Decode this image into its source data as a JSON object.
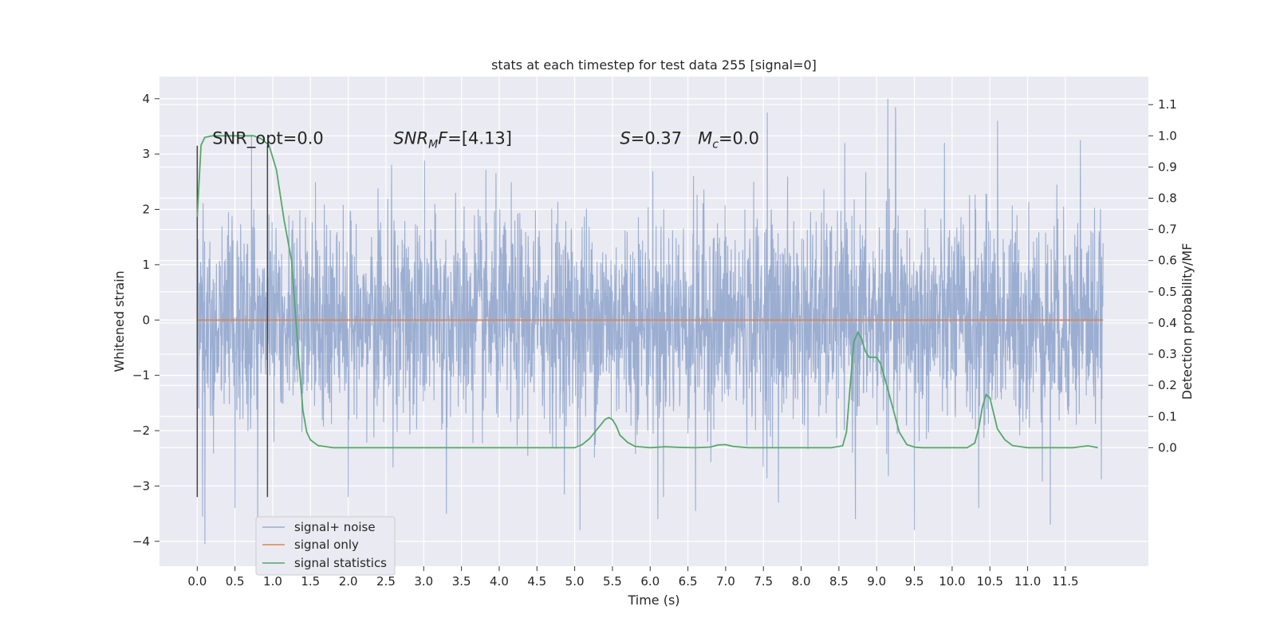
{
  "chart_data": {
    "type": "line",
    "title": "stats at each timestep for test data 255 [signal=0]",
    "xlabel": "Time (s)",
    "ylabel_left": "Whitened strain",
    "ylabel_right": "Detection probability/MF",
    "xlim": [
      -0.5,
      12.6
    ],
    "ylim_left": [
      -4.45,
      4.4
    ],
    "ylim_right": [
      -0.38,
      1.19
    ],
    "x_ticks": [
      0.0,
      0.5,
      1.0,
      1.5,
      2.0,
      2.5,
      3.0,
      3.5,
      4.0,
      4.5,
      5.0,
      5.5,
      6.0,
      6.5,
      7.0,
      7.5,
      8.0,
      8.5,
      9.0,
      9.5,
      10.0,
      10.5,
      11.0,
      11.5
    ],
    "x_tick_labels": [
      "0.0",
      "0.5",
      "1.0",
      "1.5",
      "2.0",
      "2.5",
      "3.0",
      "3.5",
      "4.0",
      "4.5",
      "5.0",
      "5.5",
      "6.0",
      "6.5",
      "7.0",
      "7.5",
      "8.0",
      "8.5",
      "9.0",
      "9.5",
      "10.0",
      "10.5",
      "11.0",
      "11.5"
    ],
    "y_left_ticks": [
      -4,
      -3,
      -2,
      -1,
      0,
      1,
      2,
      3,
      4
    ],
    "y_left_tick_labels": [
      "−4",
      "−3",
      "−2",
      "−1",
      "0",
      "1",
      "2",
      "3",
      "4"
    ],
    "y_right_ticks": [
      0.0,
      0.1,
      0.2,
      0.3,
      0.4,
      0.5,
      0.6,
      0.7,
      0.8,
      0.9,
      1.0,
      1.1
    ],
    "y_right_tick_labels": [
      "0.0",
      "0.1",
      "0.2",
      "0.3",
      "0.4",
      "0.5",
      "0.6",
      "0.7",
      "0.8",
      "0.9",
      "1.0",
      "1.1"
    ],
    "grid": true,
    "legend_position": "lower-left",
    "annotations": [
      {
        "text": "SNR_opt=0.0",
        "x": 0.2,
        "y": 3.18
      },
      {
        "text": "SNR_MF=[4.13]",
        "x": 2.6,
        "y": 3.18,
        "math": "snrmf"
      },
      {
        "text": "S=0.37   M_c=0.0",
        "x": 5.6,
        "y": 3.18,
        "math": "smc"
      }
    ],
    "vlines": [
      {
        "x": 0.0,
        "ymin": -3.2,
        "ymax": 3.15
      },
      {
        "x": 0.93,
        "ymin": -3.2,
        "ymax": 3.15
      }
    ],
    "series": [
      {
        "name": "signal+ noise",
        "axis": "left",
        "color": "#4c72b0",
        "opacity": 0.5,
        "kind": "noise",
        "x_range": [
          0.0,
          12.0
        ],
        "sample_rate": 256,
        "std": 0.95,
        "peaks": [
          {
            "x": 0.07,
            "y": -3.55
          },
          {
            "x": 0.1,
            "y": -4.05
          },
          {
            "x": 0.72,
            "y": 3.35
          },
          {
            "x": 0.5,
            "y": -3.4
          },
          {
            "x": 0.8,
            "y": -3.7
          },
          {
            "x": 2.0,
            "y": -3.2
          },
          {
            "x": 3.3,
            "y": -3.5
          },
          {
            "x": 5.07,
            "y": -3.8
          },
          {
            "x": 6.1,
            "y": -3.6
          },
          {
            "x": 6.6,
            "y": -3.45
          },
          {
            "x": 7.55,
            "y": 3.75
          },
          {
            "x": 7.7,
            "y": -3.3
          },
          {
            "x": 8.72,
            "y": -3.6
          },
          {
            "x": 9.15,
            "y": 4.0
          },
          {
            "x": 9.25,
            "y": 3.85
          },
          {
            "x": 9.5,
            "y": -3.8
          },
          {
            "x": 10.6,
            "y": 3.6
          },
          {
            "x": 10.35,
            "y": -3.4
          },
          {
            "x": 11.3,
            "y": -3.7
          },
          {
            "x": 11.7,
            "y": 3.25
          }
        ]
      },
      {
        "name": "signal only",
        "axis": "left",
        "color": "#dd8452",
        "x": [
          0.0,
          12.0
        ],
        "y": [
          0.0,
          0.0
        ]
      },
      {
        "name": "signal statistics",
        "axis": "right",
        "color": "#55a868",
        "x": [
          0.0,
          0.05,
          0.1,
          0.2,
          0.3,
          0.45,
          0.6,
          0.75,
          0.85,
          0.95,
          1.05,
          1.15,
          1.25,
          1.3,
          1.35,
          1.4,
          1.45,
          1.5,
          1.6,
          1.8,
          2.0,
          3.0,
          4.0,
          5.0,
          5.1,
          5.2,
          5.3,
          5.4,
          5.45,
          5.5,
          5.55,
          5.6,
          5.7,
          5.8,
          6.0,
          6.2,
          6.4,
          6.6,
          6.8,
          6.9,
          7.0,
          7.1,
          7.3,
          7.6,
          8.0,
          8.4,
          8.55,
          8.6,
          8.65,
          8.7,
          8.75,
          8.8,
          8.85,
          8.9,
          9.0,
          9.05,
          9.1,
          9.2,
          9.3,
          9.4,
          9.5,
          9.6,
          9.8,
          10.0,
          10.2,
          10.3,
          10.35,
          10.4,
          10.45,
          10.5,
          10.55,
          10.6,
          10.7,
          10.8,
          11.0,
          11.3,
          11.6,
          11.8,
          11.93
        ],
        "y": [
          0.74,
          0.97,
          0.995,
          1.0,
          1.0,
          1.0,
          1.0,
          1.0,
          0.99,
          0.97,
          0.89,
          0.73,
          0.6,
          0.43,
          0.27,
          0.12,
          0.05,
          0.025,
          0.007,
          0.0,
          0.0,
          0.0,
          0.0,
          0.0,
          0.01,
          0.03,
          0.06,
          0.09,
          0.097,
          0.09,
          0.07,
          0.04,
          0.017,
          0.004,
          0.0,
          0.003,
          0.001,
          0.0,
          0.002,
          0.009,
          0.01,
          0.004,
          0.0,
          0.0,
          0.0,
          0.0,
          0.006,
          0.05,
          0.2,
          0.34,
          0.37,
          0.35,
          0.31,
          0.29,
          0.29,
          0.27,
          0.23,
          0.14,
          0.05,
          0.01,
          0.002,
          0.0,
          0.0,
          0.0,
          0.0,
          0.015,
          0.06,
          0.13,
          0.17,
          0.16,
          0.11,
          0.06,
          0.025,
          0.007,
          0.0,
          0.0,
          0.0,
          0.006,
          0.0
        ]
      }
    ]
  }
}
